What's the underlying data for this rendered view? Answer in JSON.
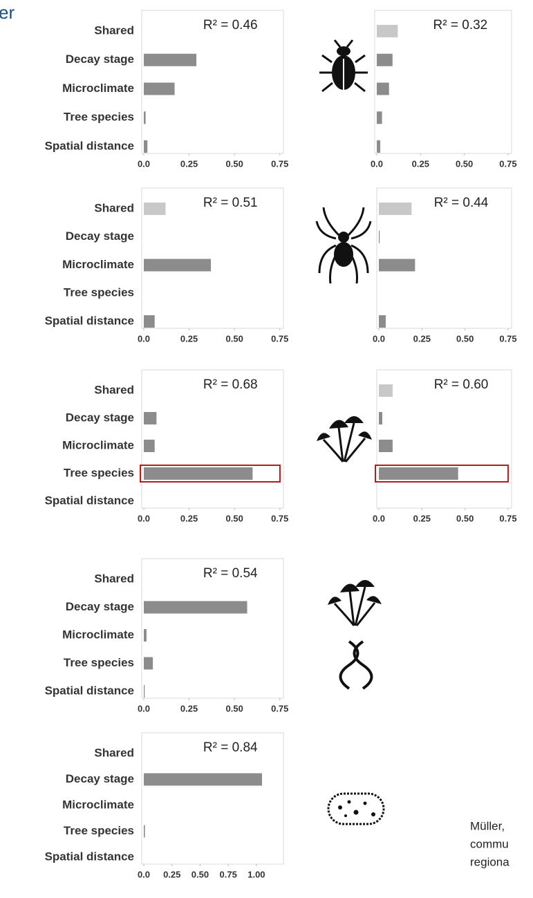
{
  "title": "er",
  "citation": [
    "Müller,",
    "commu",
    "regiona"
  ],
  "chart_data": [
    {
      "type": "bar",
      "orientation": "horizontal",
      "annotation": "R² = 0.46",
      "categories": [
        "Shared",
        "Decay stage",
        "Microclimate",
        "Tree species",
        "Spatial distance"
      ],
      "values": [
        0,
        0.29,
        0.17,
        0.01,
        0.02
      ],
      "colors": [
        "#c8c8c8",
        "#8c8c8c",
        "#8c8c8c",
        "#8c8c8c",
        "#8c8c8c"
      ],
      "xlim": [
        0,
        0.77
      ],
      "xticks": [
        {
          "value": 0,
          "label": "0.0"
        },
        0.25,
        {
          "value": 0.5,
          "label": "0.50"
        },
        0.75
      ]
    },
    {
      "type": "bar",
      "orientation": "horizontal",
      "annotation": "R² = 0.32",
      "values": [
        0.12,
        0.09,
        0.07,
        0.03,
        0.02
      ],
      "colors": [
        "#c8c8c8",
        "#8c8c8c",
        "#8c8c8c",
        "#8c8c8c",
        "#8c8c8c"
      ],
      "xlim": [
        0,
        0.77
      ],
      "xticks": [
        {
          "value": 0,
          "label": "0.0"
        },
        0.25,
        {
          "value": 0.5,
          "label": "0.50"
        },
        0.75
      ]
    },
    {
      "type": "bar",
      "orientation": "horizontal",
      "annotation": "R² = 0.51",
      "categories": [
        "Shared",
        "Decay stage",
        "Microclimate",
        "Tree species",
        "Spatial distance"
      ],
      "values": [
        0.12,
        0,
        0.37,
        0,
        0.06
      ],
      "colors": [
        "#c8c8c8",
        "#8c8c8c",
        "#8c8c8c",
        "#8c8c8c",
        "#8c8c8c"
      ],
      "xlim": [
        0,
        0.77
      ],
      "xticks": [
        {
          "value": 0,
          "label": "0.0"
        },
        0.25,
        {
          "value": 0.5,
          "label": "0.50"
        },
        0.75
      ]
    },
    {
      "type": "bar",
      "orientation": "horizontal",
      "annotation": "R² = 0.44",
      "values": [
        0.19,
        0.005,
        0.21,
        0,
        0.04
      ],
      "colors": [
        "#c8c8c8",
        "#8c8c8c",
        "#8c8c8c",
        "#8c8c8c",
        "#8c8c8c"
      ],
      "xlim": [
        0,
        0.77
      ],
      "xticks": [
        {
          "value": 0,
          "label": "0.0"
        },
        0.25,
        {
          "value": 0.5,
          "label": "0.50"
        },
        0.75
      ]
    },
    {
      "type": "bar",
      "orientation": "horizontal",
      "annotation": "R² = 0.68",
      "categories": [
        "Shared",
        "Decay stage",
        "Microclimate",
        "Tree species",
        "Spatial distance"
      ],
      "values": [
        0,
        0.07,
        0.06,
        0.6,
        0
      ],
      "colors": [
        "#c8c8c8",
        "#8c8c8c",
        "#8c8c8c",
        "#8c8c8c",
        "#8c8c8c"
      ],
      "xlim": [
        0,
        0.77
      ],
      "xticks": [
        {
          "value": 0,
          "label": "0.0"
        },
        0.25,
        {
          "value": 0.5,
          "label": "0.50"
        },
        0.75
      ],
      "highlight": 3,
      "highlight_color": "#b01c1c"
    },
    {
      "type": "bar",
      "orientation": "horizontal",
      "annotation": "R² = 0.60",
      "values": [
        0.08,
        0.02,
        0.08,
        0.46,
        0
      ],
      "colors": [
        "#c8c8c8",
        "#8c8c8c",
        "#8c8c8c",
        "#8c8c8c",
        "#8c8c8c"
      ],
      "xlim": [
        0,
        0.77
      ],
      "xticks": [
        {
          "value": 0,
          "label": "0.0"
        },
        0.25,
        {
          "value": 0.5,
          "label": "0.50"
        },
        0.75
      ],
      "highlight": 3,
      "highlight_color": "#b01c1c"
    },
    {
      "type": "bar",
      "orientation": "horizontal",
      "annotation": "R² = 0.54",
      "categories": [
        "Shared",
        "Decay stage",
        "Microclimate",
        "Tree species",
        "Spatial distance"
      ],
      "values": [
        0,
        0.57,
        0.015,
        0.05,
        0.005
      ],
      "colors": [
        "#c8c8c8",
        "#8c8c8c",
        "#8c8c8c",
        "#8c8c8c",
        "#8c8c8c"
      ],
      "xlim": [
        0,
        0.77
      ],
      "xticks": [
        {
          "value": 0,
          "label": "0.0"
        },
        0.25,
        {
          "value": 0.5,
          "label": "0.50"
        },
        0.75
      ]
    },
    {
      "type": "bar",
      "orientation": "horizontal",
      "annotation": "R² = 0.84",
      "categories": [
        "Shared",
        "Decay stage",
        "Microclimate",
        "Tree species",
        "Spatial distance"
      ],
      "values": [
        0,
        1.05,
        0,
        0.01,
        0
      ],
      "colors": [
        "#c8c8c8",
        "#8c8c8c",
        "#8c8c8c",
        "#8c8c8c",
        "#8c8c8c"
      ],
      "xlim": [
        0,
        1.24
      ],
      "xticks": [
        {
          "value": 0,
          "label": "0.0"
        },
        {
          "value": 0.25,
          "label": "0.25"
        },
        {
          "value": 0.5,
          "label": "0.50"
        },
        {
          "value": 0.75,
          "label": "0.75"
        },
        {
          "value": 1,
          "label": "1.00"
        }
      ]
    }
  ]
}
